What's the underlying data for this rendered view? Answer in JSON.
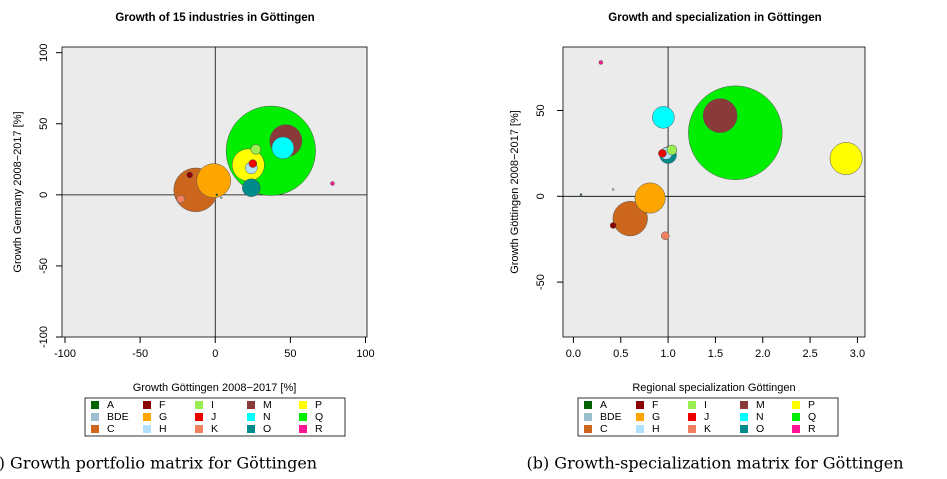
{
  "chart_data": [
    {
      "type": "scatter",
      "title": "Growth of 15 industries in Göttingen",
      "xlabel": "Growth Göttingen 2008−2017 [%]",
      "ylabel": "Growth Germany 2008−2017 [%]",
      "caption": "(a) Growth portfolio matrix for Göttingen",
      "xlim": [
        -102,
        101
      ],
      "ylim": [
        -100,
        104
      ],
      "xticks": [
        -100,
        -50,
        0,
        50,
        100
      ],
      "yticks": [
        -100,
        -50,
        0,
        50,
        100
      ],
      "vline": 0,
      "hline": 0,
      "series": [
        {
          "name": "A",
          "color": "#006400",
          "x": [
            1
          ],
          "values": [
            0
          ],
          "sizes": [
            1
          ]
        },
        {
          "name": "BDE",
          "color": "#9ac0cd",
          "x": [
            4
          ],
          "values": [
            -2
          ],
          "sizes": [
            1
          ]
        },
        {
          "name": "C",
          "color": "#cd661d",
          "x": [
            -13
          ],
          "values": [
            3.5
          ],
          "sizes": [
            480
          ]
        },
        {
          "name": "F",
          "color": "#8b0000",
          "x": [
            -17
          ],
          "values": [
            14
          ],
          "sizes": [
            9
          ]
        },
        {
          "name": "G",
          "color": "#ffa500",
          "x": [
            -1
          ],
          "values": [
            10
          ],
          "sizes": [
            290
          ]
        },
        {
          "name": "H",
          "color": "#b0e2ff",
          "x": [
            24
          ],
          "values": [
            19
          ],
          "sizes": [
            36
          ]
        },
        {
          "name": "I",
          "color": "#9aee50",
          "x": [
            27
          ],
          "values": [
            32
          ],
          "sizes": [
            25
          ]
        },
        {
          "name": "J",
          "color": "#ee0000",
          "x": [
            25
          ],
          "values": [
            22
          ],
          "sizes": [
            16
          ]
        },
        {
          "name": "K",
          "color": "#f08060",
          "x": [
            -23
          ],
          "values": [
            -3
          ],
          "sizes": [
            16
          ]
        },
        {
          "name": "M",
          "color": "#8b3a3a",
          "x": [
            47
          ],
          "values": [
            38
          ],
          "sizes": [
            260
          ]
        },
        {
          "name": "N",
          "color": "#00ffff",
          "x": [
            45
          ],
          "values": [
            33
          ],
          "sizes": [
            120
          ]
        },
        {
          "name": "O",
          "color": "#008b8b",
          "x": [
            24
          ],
          "values": [
            5
          ],
          "sizes": [
            80
          ]
        },
        {
          "name": "P",
          "color": "#ffff00",
          "x": [
            22
          ],
          "values": [
            21
          ],
          "sizes": [
            260
          ]
        },
        {
          "name": "Q",
          "color": "#00ee00",
          "x": [
            37
          ],
          "values": [
            31
          ],
          "sizes": [
            2000
          ]
        },
        {
          "name": "R",
          "color": "#ff1493",
          "x": [
            78
          ],
          "values": [
            8
          ],
          "sizes": [
            4
          ]
        }
      ]
    },
    {
      "type": "scatter",
      "title": "Growth and specialization in Göttingen",
      "xlabel": "Regional specialization Göttingen",
      "ylabel": "Growth Göttingen 2008−2017 [%]",
      "caption": "(b) Growth-specialization matrix for Göttingen",
      "xlim": [
        -0.11,
        3.08
      ],
      "ylim": [
        -82,
        87
      ],
      "xticks": [
        {
          "value": 0,
          "label": "0.0"
        },
        0.5,
        {
          "value": 1,
          "label": "1.0"
        },
        1.5,
        {
          "value": 2,
          "label": "2.0"
        },
        2.5,
        {
          "value": 3,
          "label": "3.0"
        }
      ],
      "yticks": [
        -50,
        0,
        50
      ],
      "vline": 1,
      "hline": 0,
      "series": [
        {
          "name": "A",
          "color": "#006400",
          "x": [
            0.08
          ],
          "values": [
            1
          ],
          "sizes": [
            1
          ]
        },
        {
          "name": "BDE",
          "color": "#9ac0cd",
          "x": [
            0.42
          ],
          "values": [
            4
          ],
          "sizes": [
            1
          ]
        },
        {
          "name": "C",
          "color": "#cd661d",
          "x": [
            0.6
          ],
          "values": [
            -13
          ],
          "sizes": [
            300
          ]
        },
        {
          "name": "F",
          "color": "#8b0000",
          "x": [
            0.42
          ],
          "values": [
            -17
          ],
          "sizes": [
            9
          ]
        },
        {
          "name": "G",
          "color": "#ffa500",
          "x": [
            0.81
          ],
          "values": [
            -1
          ],
          "sizes": [
            230
          ]
        },
        {
          "name": "H",
          "color": "#b0e2ff",
          "x": [
            0.98
          ],
          "values": [
            25
          ],
          "sizes": [
            36
          ]
        },
        {
          "name": "I",
          "color": "#9aee50",
          "x": [
            1.04
          ],
          "values": [
            27
          ],
          "sizes": [
            25
          ]
        },
        {
          "name": "J",
          "color": "#ee0000",
          "x": [
            0.94
          ],
          "values": [
            25
          ],
          "sizes": [
            16
          ]
        },
        {
          "name": "K",
          "color": "#f08060",
          "x": [
            0.97
          ],
          "values": [
            -23
          ],
          "sizes": [
            16
          ]
        },
        {
          "name": "M",
          "color": "#8b3a3a",
          "x": [
            1.55
          ],
          "values": [
            47
          ],
          "sizes": [
            290
          ]
        },
        {
          "name": "N",
          "color": "#00ffff",
          "x": [
            0.95
          ],
          "values": [
            46
          ],
          "sizes": [
            120
          ]
        },
        {
          "name": "O",
          "color": "#008b8b",
          "x": [
            1.0
          ],
          "values": [
            24
          ],
          "sizes": [
            70
          ]
        },
        {
          "name": "P",
          "color": "#ffff00",
          "x": [
            2.88
          ],
          "values": [
            22
          ],
          "sizes": [
            260
          ]
        },
        {
          "name": "Q",
          "color": "#00ee00",
          "x": [
            1.71
          ],
          "values": [
            37
          ],
          "sizes": [
            2200
          ]
        },
        {
          "name": "R",
          "color": "#ff1493",
          "x": [
            0.29
          ],
          "values": [
            78
          ],
          "sizes": [
            4
          ]
        }
      ]
    }
  ]
}
